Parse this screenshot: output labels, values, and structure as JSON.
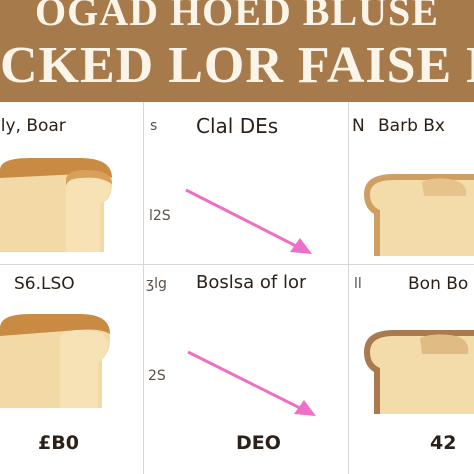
{
  "banner": {
    "line1": "OGAD HOED BLUSE",
    "line2": "CKED LOR FAISE BBRO"
  },
  "colors": {
    "banner": "#a67a4b",
    "banner_text": "#fbf4e8",
    "arrow": "#ee6fc6",
    "crust": "#c98a44",
    "crumb": "#f3dcaa"
  },
  "cells": {
    "top_left_label": "lly, Boar",
    "top_mid_side": "s",
    "top_mid_label": "Clal DEs",
    "top_right_side": "N",
    "top_right_label": "Barb Bx",
    "mid_side": "l2S",
    "row2_left_label": "S6.LSO",
    "row2_mid_side": "ʒlg",
    "row2_mid_label": "Boslsa of lor",
    "row2_right_side": "ll",
    "row2_right_label": "Bon Bo",
    "lower_side": "2S",
    "bottom_left_value": "£B0",
    "bottom_mid_value": "DEO",
    "bottom_right_value": "42"
  }
}
